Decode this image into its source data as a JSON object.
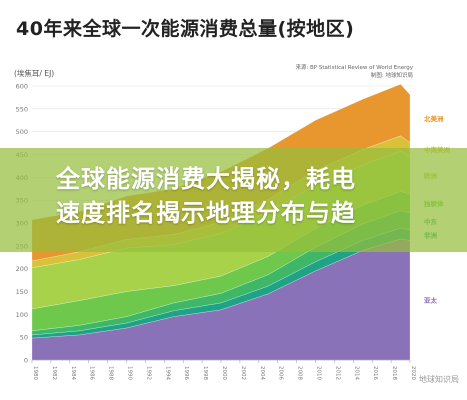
{
  "page": {
    "banner_line1": "全球能源消费大揭秘，耗电",
    "banner_line2": "速度排名揭示地理分布与趋",
    "watermark": "地球知识局"
  },
  "chart_data": {
    "type": "area",
    "stacked": true,
    "title": "40年来全球一次能源消费总量(按地区)",
    "source_line1": "来源: BP Statistical Review of World Energy",
    "source_line2": "制图: 地球知识局",
    "ylabel": "(埃焦耳/ EJ)",
    "ylim": [
      0,
      600
    ],
    "yticks": [
      0,
      50,
      100,
      150,
      200,
      250,
      300,
      350,
      400,
      450,
      500,
      550,
      600
    ],
    "xlim": [
      1980,
      2020
    ],
    "xticks": [
      1980,
      1982,
      1984,
      1986,
      1988,
      1990,
      1992,
      1994,
      1996,
      1998,
      2000,
      2002,
      2004,
      2006,
      2008,
      2010,
      2012,
      2014,
      2016,
      2018,
      2020
    ],
    "grid": true,
    "x": [
      1980,
      1985,
      1990,
      1995,
      2000,
      2005,
      2010,
      2015,
      2019,
      2020
    ],
    "series": [
      {
        "name": "亚太",
        "color": "#8a72b8",
        "values": [
          48,
          55,
          70,
          95,
          110,
          145,
          195,
          240,
          265,
          262
        ]
      },
      {
        "name": "非洲",
        "color": "#1fa387",
        "values": [
          7,
          9,
          11,
          13,
          15,
          17,
          20,
          22,
          24,
          23
        ]
      },
      {
        "name": "中东",
        "color": "#3eb868",
        "values": [
          9,
          12,
          14,
          17,
          21,
          25,
          32,
          36,
          38,
          37
        ]
      },
      {
        "name": "独联体",
        "color": "#6ec84c",
        "values": [
          48,
          54,
          55,
          38,
          38,
          40,
          41,
          41,
          42,
          41
        ]
      },
      {
        "name": "欧洲",
        "color": "#a8d24a",
        "values": [
          90,
          90,
          95,
          90,
          93,
          97,
          95,
          88,
          88,
          82
        ]
      },
      {
        "name": "中南美洲",
        "color": "#d9c23a",
        "values": [
          15,
          17,
          19,
          22,
          25,
          28,
          32,
          34,
          34,
          31
        ]
      },
      {
        "name": "北美洲",
        "color": "#e8962e",
        "values": [
          90,
          88,
          95,
          100,
          110,
          112,
          110,
          110,
          113,
          105
        ]
      }
    ],
    "legend_placement": "right, labels at series ends"
  }
}
